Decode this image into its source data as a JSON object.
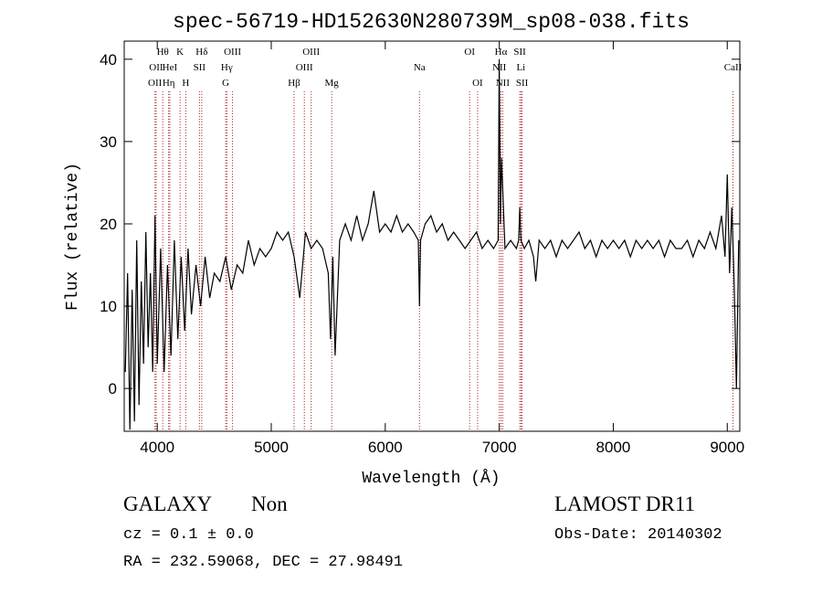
{
  "chart_data": {
    "type": "line",
    "title": "spec-56719-HD152630N280739M_sp08-038.fits",
    "x_label": "Wavelength (Å)",
    "y_label": "Flux (relative)",
    "xlim": [
      3710,
      9110
    ],
    "ylim": [
      -5.2,
      42.2
    ],
    "xticks": [
      4000,
      5000,
      6000,
      7000,
      8000,
      9000
    ],
    "yticks": [
      0,
      10,
      20,
      30,
      40
    ],
    "line_rows": [
      [
        {
          "label": "Hθ",
          "x": 4048
        },
        {
          "label": "K",
          "x": 4200
        },
        {
          "label": "Hδ",
          "x": 4390
        },
        {
          "label": "OIII",
          "x": 4660
        },
        {
          "label": "OIII",
          "x": 5350
        },
        {
          "label": "OI",
          "x": 6740
        },
        {
          "label": "Hα",
          "x": 7015
        },
        {
          "label": "SII",
          "x": 7180
        }
      ],
      [
        {
          "label": "OII",
          "x": 3990
        },
        {
          "label": "HeI",
          "x": 4110
        },
        {
          "label": "SII",
          "x": 4370
        },
        {
          "label": "Hγ",
          "x": 4610
        },
        {
          "label": "OIII",
          "x": 5290
        },
        {
          "label": "Na",
          "x": 6300
        },
        {
          "label": "NII",
          "x": 7000
        },
        {
          "label": "Li",
          "x": 7190
        },
        {
          "label": "CaII",
          "x": 9050
        }
      ],
      [
        {
          "label": "OII",
          "x": 3980
        },
        {
          "label": "Hη",
          "x": 4100
        },
        {
          "label": "H",
          "x": 4250
        },
        {
          "label": "G",
          "x": 4600
        },
        {
          "label": "Hβ",
          "x": 5200
        },
        {
          "label": "Mg",
          "x": 5530
        },
        {
          "label": "OI",
          "x": 6810
        },
        {
          "label": "NII",
          "x": 7030
        },
        {
          "label": "SII",
          "x": 7200
        }
      ]
    ],
    "line_color": "#b22222",
    "series": [
      {
        "color": "#000000",
        "x": [
          3720,
          3740,
          3760,
          3780,
          3800,
          3820,
          3840,
          3860,
          3880,
          3900,
          3920,
          3940,
          3960,
          3980,
          4000,
          4030,
          4060,
          4090,
          4120,
          4150,
          4180,
          4210,
          4240,
          4270,
          4300,
          4340,
          4380,
          4420,
          4460,
          4500,
          4550,
          4600,
          4650,
          4700,
          4750,
          4800,
          4850,
          4900,
          4950,
          5000,
          5050,
          5100,
          5150,
          5200,
          5250,
          5300,
          5350,
          5400,
          5450,
          5500,
          5520,
          5540,
          5560,
          5600,
          5650,
          5700,
          5750,
          5800,
          5850,
          5900,
          5950,
          6000,
          6050,
          6100,
          6150,
          6200,
          6250,
          6290,
          6300,
          6310,
          6350,
          6400,
          6450,
          6500,
          6550,
          6600,
          6650,
          6700,
          6750,
          6800,
          6850,
          6900,
          6950,
          6990,
          7000,
          7010,
          7020,
          7050,
          7100,
          7150,
          7170,
          7180,
          7190,
          7220,
          7260,
          7300,
          7320,
          7350,
          7400,
          7450,
          7500,
          7550,
          7600,
          7650,
          7700,
          7750,
          7800,
          7850,
          7900,
          7950,
          8000,
          8050,
          8100,
          8150,
          8200,
          8250,
          8300,
          8350,
          8400,
          8450,
          8500,
          8550,
          8600,
          8650,
          8700,
          8750,
          8800,
          8850,
          8900,
          8950,
          8980,
          9000,
          9020,
          9040,
          9060,
          9080,
          9100
        ],
        "values": [
          2,
          14,
          -5,
          12,
          -4,
          18,
          -2,
          13,
          3,
          19,
          5,
          14,
          2,
          21,
          3,
          17,
          2,
          15,
          4,
          18,
          6,
          16,
          7,
          17,
          9,
          15,
          10,
          16,
          11,
          14,
          13,
          16,
          12,
          15,
          14,
          18,
          15,
          17,
          16,
          17,
          19,
          18,
          19,
          16,
          11,
          19,
          17,
          18,
          17,
          14,
          6,
          16,
          4,
          18,
          20,
          18,
          21,
          18,
          20,
          24,
          19,
          20,
          19,
          21,
          19,
          20,
          19,
          18,
          10,
          18,
          20,
          21,
          19,
          20,
          18,
          19,
          18,
          17,
          18,
          19,
          17,
          18,
          17,
          18,
          40,
          20,
          28,
          17,
          18,
          17,
          18,
          22,
          18,
          17,
          18,
          16,
          13,
          18,
          17,
          18,
          16,
          18,
          17,
          18,
          19,
          17,
          18,
          16,
          18,
          17,
          18,
          17,
          18,
          16,
          18,
          17,
          18,
          17,
          18,
          16,
          18,
          17,
          17,
          18,
          16,
          18,
          17,
          19,
          17,
          21,
          16,
          26,
          14,
          22,
          13,
          0,
          18
        ]
      }
    ]
  },
  "footer": {
    "class": "GALAXY",
    "subclass": "Non",
    "cz": "cz = 0.1 ± 0.0",
    "coords": "RA = 232.59068, DEC =  27.98491",
    "survey": "LAMOST DR11",
    "obs_date": "Obs-Date: 20140302"
  }
}
